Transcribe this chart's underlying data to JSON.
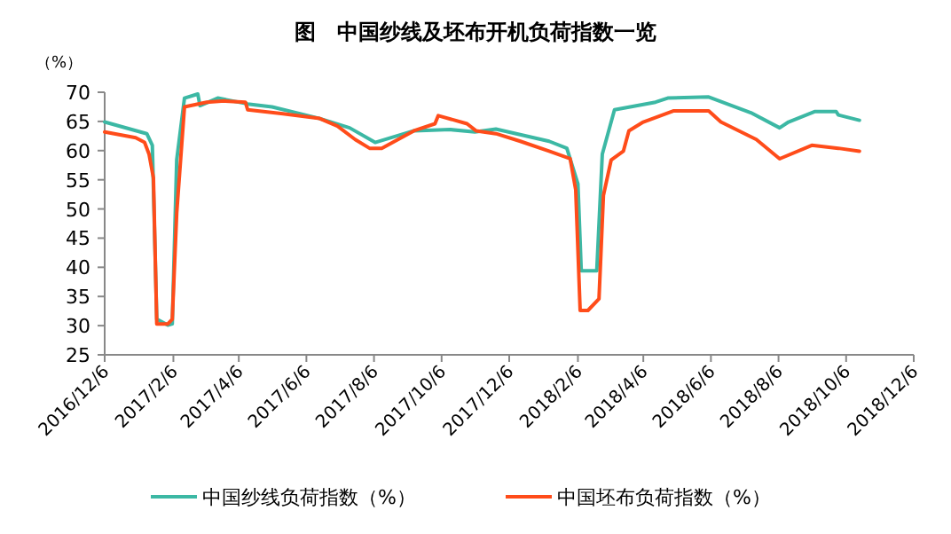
{
  "chart_data": {
    "type": "line",
    "title": "图　中国纱线及坯布开机负荷指数一览",
    "ylabel": "（%）",
    "ylim": [
      25,
      70
    ],
    "yticks": [
      25,
      30,
      35,
      40,
      45,
      50,
      55,
      60,
      65,
      70
    ],
    "xlim": [
      "2016-12-06",
      "2018-12-06"
    ],
    "xticks": [
      {
        "value": "2016-12-06",
        "label": "2016/12/6"
      },
      {
        "value": "2017-02-06",
        "label": "2017/2/6"
      },
      {
        "value": "2017-04-06",
        "label": "2017/4/6"
      },
      {
        "value": "2017-06-06",
        "label": "2017/6/6"
      },
      {
        "value": "2017-08-06",
        "label": "2017/8/6"
      },
      {
        "value": "2017-10-06",
        "label": "2017/10/6"
      },
      {
        "value": "2017-12-06",
        "label": "2017/12/6"
      },
      {
        "value": "2018-02-06",
        "label": "2018/2/6"
      },
      {
        "value": "2018-04-06",
        "label": "2018/4/6"
      },
      {
        "value": "2018-06-06",
        "label": "2018/6/6"
      },
      {
        "value": "2018-08-06",
        "label": "2018/8/6"
      },
      {
        "value": "2018-10-06",
        "label": "2018/10/6"
      },
      {
        "value": "2018-12-06",
        "label": "2018/12/6"
      }
    ],
    "grid": false,
    "legend": "bottom",
    "marker": "none",
    "line_style": "solid",
    "series": [
      {
        "name": "中国纱线负荷指数（%）",
        "color": "#3cb8a4",
        "x": [
          "2016-12-06",
          "2017-01-13",
          "2017-01-18",
          "2017-01-22",
          "2017-02-01",
          "2017-02-05",
          "2017-02-09",
          "2017-02-16",
          "2017-02-28",
          "2017-03-02",
          "2017-03-18",
          "2017-04-14",
          "2017-05-06",
          "2017-06-01",
          "2017-06-18",
          "2017-07-15",
          "2017-08-07",
          "2017-09-11",
          "2017-10-14",
          "2017-11-05",
          "2017-11-24",
          "2018-01-11",
          "2018-01-27",
          "2018-02-06",
          "2018-02-09",
          "2018-02-23",
          "2018-02-28",
          "2018-03-11",
          "2018-04-17",
          "2018-04-28",
          "2018-06-04",
          "2018-07-12",
          "2018-08-07",
          "2018-08-15",
          "2018-09-08",
          "2018-09-27",
          "2018-09-29",
          "2018-10-18"
        ],
        "values": [
          64.9,
          62.9,
          60.9,
          31.1,
          30.1,
          30.3,
          58.4,
          69.0,
          69.7,
          67.7,
          69.0,
          68.0,
          67.5,
          66.3,
          65.5,
          63.9,
          61.4,
          63.4,
          63.6,
          63.2,
          63.7,
          61.6,
          60.4,
          54.3,
          39.4,
          39.4,
          59.4,
          67.0,
          68.3,
          69.0,
          69.2,
          66.5,
          63.9,
          64.9,
          66.7,
          66.7,
          66.1,
          65.2
        ]
      },
      {
        "name": "中国坯布负荷指数（%）",
        "color": "#ff4c1a",
        "x": [
          "2016-12-06",
          "2017-01-03",
          "2017-01-11",
          "2017-01-15",
          "2017-01-19",
          "2017-01-22",
          "2017-02-01",
          "2017-02-05",
          "2017-02-09",
          "2017-02-16",
          "2017-03-08",
          "2017-03-24",
          "2017-04-12",
          "2017-04-14",
          "2017-05-16",
          "2017-06-18",
          "2017-07-04",
          "2017-07-20",
          "2017-08-02",
          "2017-08-13",
          "2017-09-11",
          "2017-09-30",
          "2017-10-03",
          "2017-10-29",
          "2017-11-06",
          "2017-11-24",
          "2017-12-16",
          "2018-01-11",
          "2018-01-30",
          "2018-02-04",
          "2018-02-08",
          "2018-02-15",
          "2018-02-25",
          "2018-03-01",
          "2018-03-08",
          "2018-03-19",
          "2018-03-24",
          "2018-04-06",
          "2018-05-03",
          "2018-06-04",
          "2018-06-15",
          "2018-07-17",
          "2018-08-07",
          "2018-09-05",
          "2018-09-29",
          "2018-10-18"
        ],
        "values": [
          63.2,
          62.2,
          61.4,
          59.4,
          55.3,
          30.3,
          30.3,
          31.1,
          49.3,
          67.5,
          68.3,
          68.5,
          68.3,
          67.0,
          66.3,
          65.5,
          64.2,
          61.9,
          60.4,
          60.4,
          63.4,
          64.6,
          66.0,
          64.6,
          63.4,
          62.9,
          61.6,
          59.9,
          58.6,
          53.3,
          32.6,
          32.6,
          34.6,
          52.3,
          58.4,
          59.9,
          63.4,
          64.9,
          66.8,
          66.8,
          64.9,
          61.9,
          58.6,
          60.9,
          60.4,
          59.9
        ]
      }
    ]
  }
}
